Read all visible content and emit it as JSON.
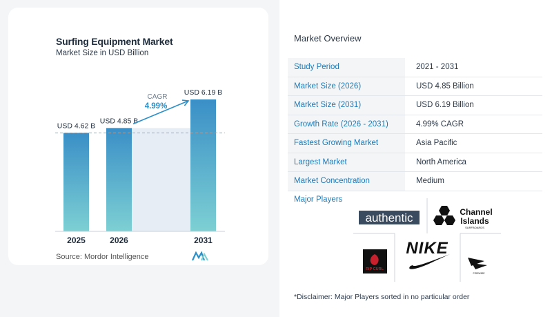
{
  "chart_data": {
    "type": "bar",
    "title": "Surfing Equipment Market",
    "subtitle": "Market Size in USD Billion",
    "categories": [
      "2025",
      "2026",
      "2031"
    ],
    "values": [
      4.62,
      4.85,
      6.19
    ],
    "value_labels": [
      "USD 4.62 B",
      "USD 4.85 B",
      "USD 6.19 B"
    ],
    "cagr_label": "CAGR",
    "cagr_value": "4.99%",
    "source": "Source:  Mordor Intelligence",
    "colors": {
      "bar_top": "#3a8fc7",
      "bar_bottom": "#7dd0d3",
      "shade": "#e6edf4",
      "arrow": "#2b8fc9"
    }
  },
  "overview": {
    "title": "Market Overview",
    "rows": [
      {
        "label": "Study Period",
        "value": "2021 - 2031"
      },
      {
        "label": "Market Size (2026)",
        "value": "USD 4.85 Billion"
      },
      {
        "label": "Market Size (2031)",
        "value": "USD 6.19 Billion"
      },
      {
        "label": "Growth Rate (2026 - 2031)",
        "value": "4.99% CAGR"
      },
      {
        "label": "Fastest Growing Market",
        "value": "Asia Pacific"
      },
      {
        "label": "Largest Market",
        "value": "North America"
      },
      {
        "label": "Market Concentration",
        "value": "Medium"
      }
    ]
  },
  "players": {
    "label": "Major Players",
    "logos": [
      "authentic",
      "Channel Islands SURFBOARDS",
      "RIP CURL",
      "NIKE",
      "FIREWIRE"
    ]
  },
  "disclaimer": "*Disclaimer: Major Players sorted in no particular order"
}
